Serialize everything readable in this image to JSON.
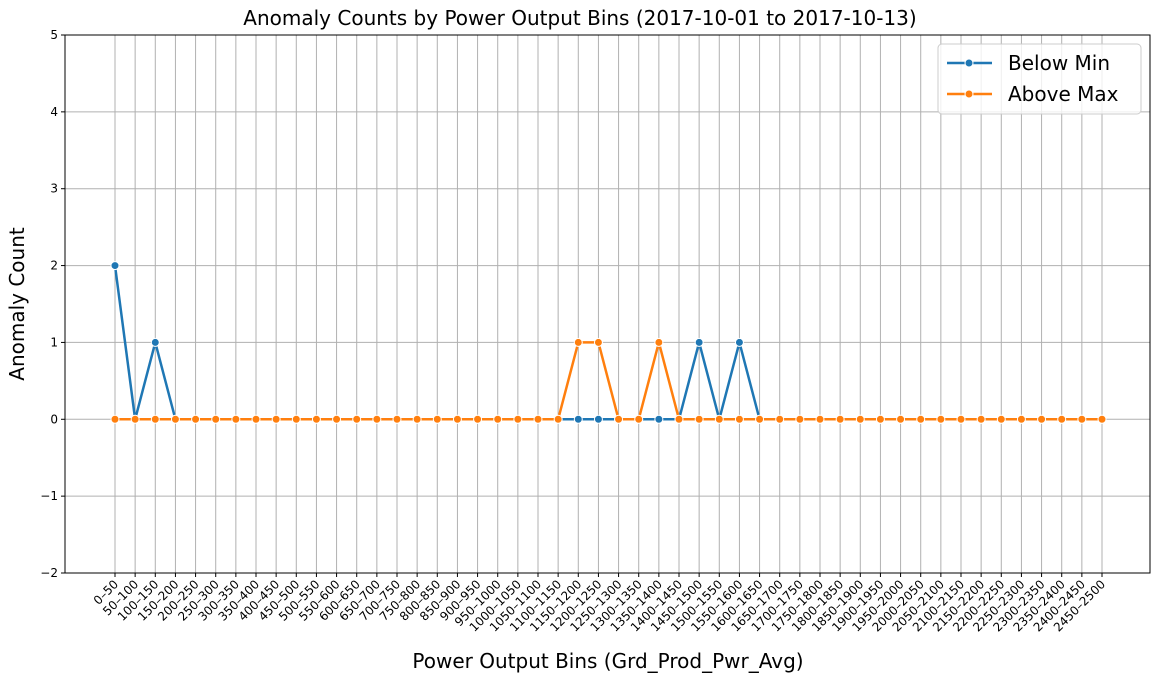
{
  "chart_data": {
    "type": "line",
    "title": "Anomaly Counts by Power Output Bins (2017-10-01 to 2017-10-13)",
    "xlabel": "Power Output Bins (Grd_Prod_Pwr_Avg)",
    "ylabel": "Anomaly Count",
    "ylim": [
      -2,
      5
    ],
    "yticks": [
      -2,
      -1,
      0,
      1,
      2,
      3,
      4,
      5
    ],
    "grid": true,
    "legend_position": "top-right",
    "categories": [
      "0–50",
      "50–100",
      "100–150",
      "150–200",
      "200–250",
      "250–300",
      "300–350",
      "350–400",
      "400–450",
      "450–500",
      "500–550",
      "550–600",
      "600–650",
      "650–700",
      "700–750",
      "750–800",
      "800–850",
      "850–900",
      "900–950",
      "950–1000",
      "1000–1050",
      "1050–1100",
      "1100–1150",
      "1150–1200",
      "1200–1250",
      "1250–1300",
      "1300–1350",
      "1350–1400",
      "1400–1450",
      "1450–1500",
      "1500–1550",
      "1550–1600",
      "1600–1650",
      "1650–1700",
      "1700–1750",
      "1750–1800",
      "1800–1850",
      "1850–1900",
      "1900–1950",
      "1950–2000",
      "2000–2050",
      "2050–2100",
      "2100–2150",
      "2150–2200",
      "2200–2250",
      "2250–2300",
      "2300–2350",
      "2350–2400",
      "2400–2450",
      "2450–2500"
    ],
    "series": [
      {
        "name": "Below Min",
        "color": "#1f77b4",
        "values": [
          2,
          0,
          1,
          0,
          0,
          0,
          0,
          0,
          0,
          0,
          0,
          0,
          0,
          0,
          0,
          0,
          0,
          0,
          0,
          0,
          0,
          0,
          0,
          0,
          0,
          0,
          0,
          0,
          0,
          1,
          0,
          1,
          0,
          0,
          0,
          0,
          0,
          0,
          0,
          0,
          0,
          0,
          0,
          0,
          0,
          0,
          0,
          0,
          0,
          0
        ]
      },
      {
        "name": "Above Max",
        "color": "#ff7f0e",
        "values": [
          0,
          0,
          0,
          0,
          0,
          0,
          0,
          0,
          0,
          0,
          0,
          0,
          0,
          0,
          0,
          0,
          0,
          0,
          0,
          0,
          0,
          0,
          0,
          1,
          1,
          0,
          0,
          1,
          0,
          0,
          0,
          0,
          0,
          0,
          0,
          0,
          0,
          0,
          0,
          0,
          0,
          0,
          0,
          0,
          0,
          0,
          0,
          0,
          0,
          0
        ]
      }
    ]
  },
  "colors": {
    "grid": "#b0b0b0",
    "axis": "#000000"
  }
}
